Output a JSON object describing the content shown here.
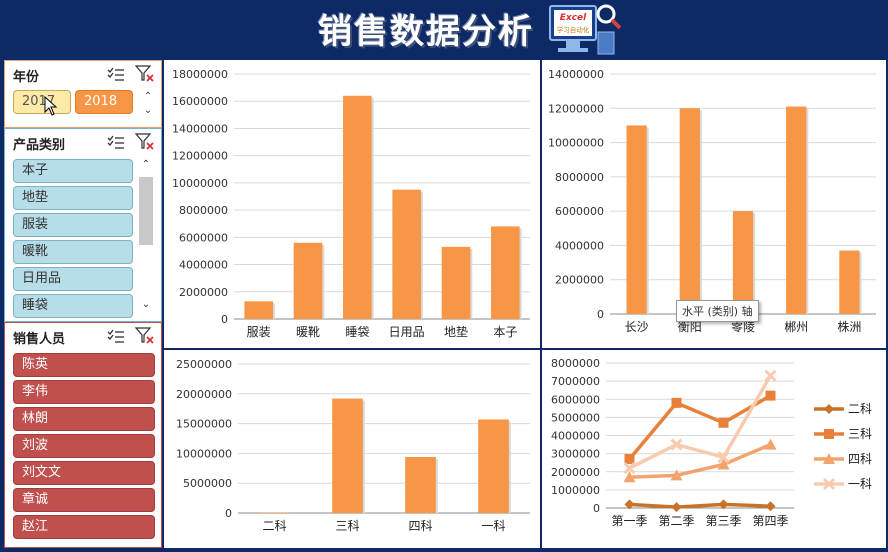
{
  "header": {
    "title": "销售数据分析",
    "logo_text_top": "Excel",
    "logo_text_bottom": "学习自动化"
  },
  "slicers": {
    "year": {
      "title": "年份",
      "items": [
        "2017",
        "2018"
      ],
      "selected": "2017"
    },
    "category": {
      "title": "产品类别",
      "items": [
        "本子",
        "地垫",
        "服装",
        "暖靴",
        "日用品",
        "睡袋"
      ]
    },
    "salesperson": {
      "title": "销售人员",
      "items": [
        "陈英",
        "李伟",
        "林朗",
        "刘波",
        "刘文文",
        "章诚",
        "赵江"
      ]
    }
  },
  "tooltip": {
    "text": "水平 (类别) 轴"
  },
  "colors": {
    "bar": "#f79646",
    "slicer_blue": "#b7dde8",
    "slicer_red": "#c0504d",
    "background": "#0d2a66"
  },
  "chart_data": [
    {
      "type": "bar",
      "id": "by-category",
      "categories": [
        "服装",
        "暖靴",
        "睡袋",
        "日用品",
        "地垫",
        "本子"
      ],
      "values": [
        1300000,
        5600000,
        16400000,
        9500000,
        5300000,
        6800000
      ],
      "ylim": [
        0,
        18000000
      ],
      "yticks": [
        0,
        2000000,
        4000000,
        6000000,
        8000000,
        10000000,
        12000000,
        14000000,
        16000000,
        18000000
      ]
    },
    {
      "type": "bar",
      "id": "by-city",
      "categories": [
        "长沙",
        "衡阳",
        "零陵",
        "郴州",
        "株洲"
      ],
      "values": [
        11000000,
        12000000,
        6000000,
        12100000,
        3700000
      ],
      "ylim": [
        0,
        14000000
      ],
      "yticks": [
        0,
        2000000,
        4000000,
        6000000,
        8000000,
        10000000,
        12000000,
        14000000
      ]
    },
    {
      "type": "bar",
      "id": "by-department",
      "categories": [
        "二科",
        "三科",
        "四科",
        "一科"
      ],
      "values": [
        100000,
        19200000,
        9400000,
        15700000
      ],
      "ylim": [
        0,
        25000000
      ],
      "yticks": [
        0,
        5000000,
        10000000,
        15000000,
        20000000,
        25000000
      ]
    },
    {
      "type": "line",
      "id": "by-quarter",
      "categories": [
        "第一季",
        "第二季",
        "第三季",
        "第四季"
      ],
      "ylim": [
        0,
        8000000
      ],
      "yticks": [
        0,
        1000000,
        2000000,
        3000000,
        4000000,
        5000000,
        6000000,
        7000000,
        8000000
      ],
      "legend_position": "right",
      "series": [
        {
          "name": "二科",
          "color": "#c8722a",
          "marker": "diamond",
          "values": [
            200000,
            50000,
            200000,
            100000
          ]
        },
        {
          "name": "三科",
          "color": "#e8803a",
          "marker": "square",
          "values": [
            2700000,
            5800000,
            4700000,
            6200000
          ]
        },
        {
          "name": "四科",
          "color": "#f2a46c",
          "marker": "triangle",
          "values": [
            1700000,
            1800000,
            2400000,
            3500000
          ]
        },
        {
          "name": "一科",
          "color": "#f8cbb0",
          "marker": "x",
          "values": [
            2200000,
            3500000,
            2800000,
            7300000
          ]
        }
      ]
    }
  ]
}
